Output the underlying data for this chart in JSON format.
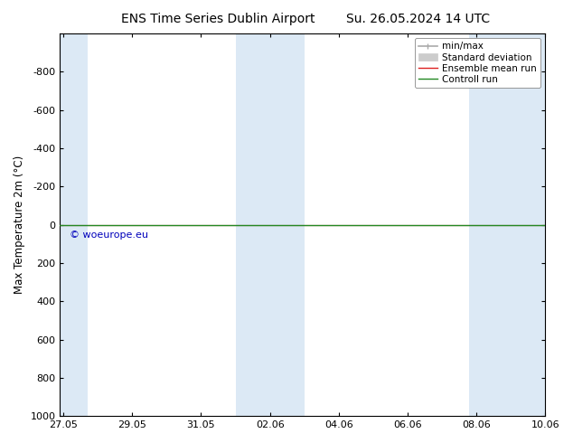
{
  "title_left": "ENS Time Series Dublin Airport",
  "title_right": "Su. 26.05.2024 14 UTC",
  "ylabel": "Max Temperature 2m (°C)",
  "ylim_min": -1000,
  "ylim_max": 1000,
  "yticks": [
    -800,
    -600,
    -400,
    -200,
    0,
    200,
    400,
    600,
    800,
    1000
  ],
  "xtick_labels": [
    "27.05",
    "29.05",
    "31.05",
    "02.06",
    "04.06",
    "06.06",
    "08.06",
    "10.06"
  ],
  "xtick_positions": [
    0,
    2,
    4,
    6,
    8,
    10,
    12,
    14
  ],
  "x_total_days": 14,
  "blue_band_ranges": [
    [
      -0.1,
      0.7
    ],
    [
      5.0,
      7.0
    ],
    [
      11.8,
      14.1
    ]
  ],
  "control_run_y": 0,
  "ensemble_mean_y": 0,
  "watermark": "© woeurope.eu",
  "watermark_color": "#0000bb",
  "background_color": "#ffffff",
  "plot_bg_color": "#ffffff",
  "blue_band_color": "#dce9f5",
  "legend_items": [
    "min/max",
    "Standard deviation",
    "Ensemble mean run",
    "Controll run"
  ],
  "minmax_color": "#aaaaaa",
  "std_color": "#cccccc",
  "ensemble_mean_color": "#dd2222",
  "control_run_color": "#228822",
  "title_fontsize": 10,
  "axis_label_fontsize": 8.5,
  "tick_fontsize": 8,
  "legend_fontsize": 7.5
}
